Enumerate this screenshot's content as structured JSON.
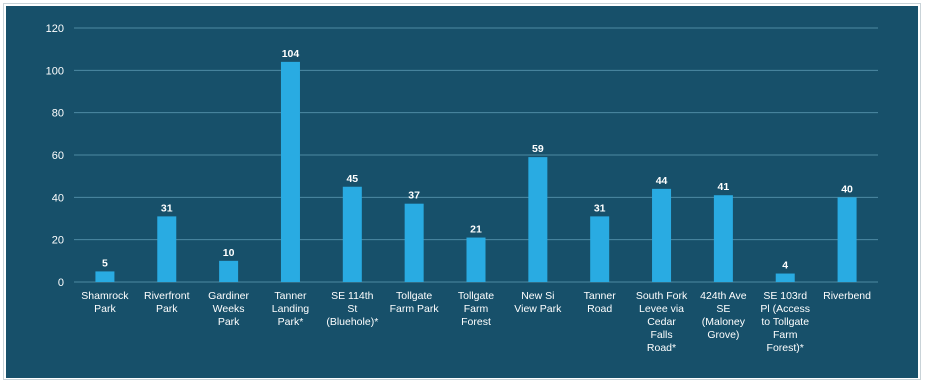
{
  "chart_data": {
    "type": "bar",
    "categories": [
      [
        "Shamrock",
        "Park"
      ],
      [
        "Riverfront",
        "Park"
      ],
      [
        "Gardiner",
        "Weeks",
        "Park"
      ],
      [
        "Tanner",
        "Landing",
        "Park*"
      ],
      [
        "SE 114th",
        "St",
        "(Bluehole)*"
      ],
      [
        "Tollgate",
        "Farm Park"
      ],
      [
        "Tollgate",
        "Farm",
        "Forest"
      ],
      [
        "New Si",
        "View Park"
      ],
      [
        "Tanner",
        "Road"
      ],
      [
        "South Fork",
        "Levee via",
        "Cedar",
        "Falls",
        "Road*"
      ],
      [
        "424th Ave",
        "SE",
        "(Maloney",
        "Grove)"
      ],
      [
        "SE 103rd",
        "Pl (Access",
        "to Tollgate",
        "Farm",
        "Forest)*"
      ],
      [
        "Riverbend"
      ]
    ],
    "values": [
      5,
      31,
      10,
      104,
      45,
      37,
      21,
      59,
      31,
      44,
      41,
      4,
      40
    ],
    "data_labels": [
      "5",
      "31",
      "10",
      "104",
      "45",
      "37",
      "21",
      "59",
      "31",
      "44",
      "41",
      "4",
      "40"
    ],
    "yticks": [
      0,
      20,
      40,
      60,
      80,
      100,
      120
    ],
    "ytick_labels": [
      "0",
      "20",
      "40",
      "60",
      "80",
      "100",
      "120"
    ],
    "ylim": [
      0,
      120
    ],
    "grid": true,
    "colors": {
      "background": "#17506a",
      "bar": "#29abe2",
      "grid": "#4d8aa3",
      "text": "#ffffff"
    }
  }
}
